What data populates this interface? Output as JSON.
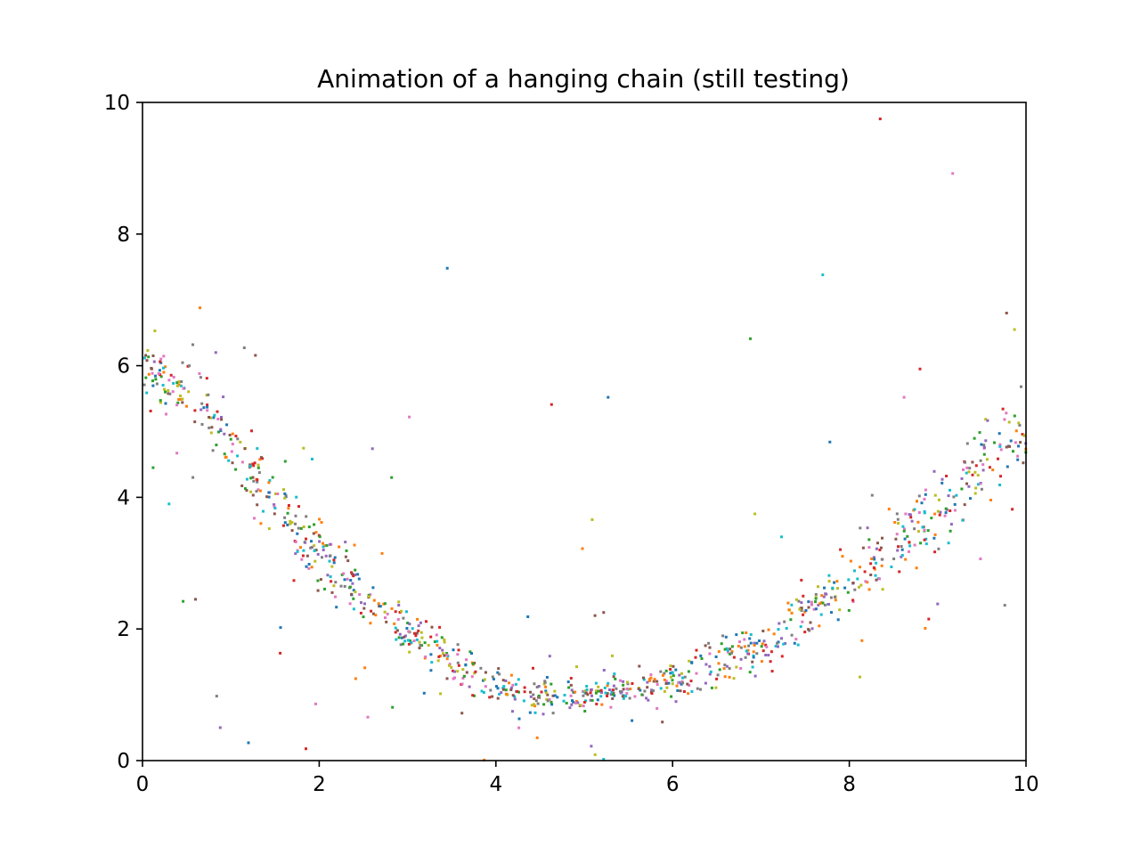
{
  "chart_data": {
    "type": "scatter",
    "title": "Animation of a hanging chain (still testing)",
    "xlabel": "",
    "ylabel": "",
    "xlim": [
      0,
      10
    ],
    "ylim": [
      0,
      10
    ],
    "xticks": [
      "0",
      "2",
      "4",
      "6",
      "8",
      "10"
    ],
    "yticks": [
      "0",
      "2",
      "4",
      "6",
      "8",
      "10"
    ],
    "grid": false,
    "legend": "none",
    "marker": "small square",
    "colors": [
      "#1f77b4",
      "#ff7f0e",
      "#2ca02c",
      "#d62728",
      "#9467bd",
      "#8c564b",
      "#e377c2",
      "#7f7f7f",
      "#bcbd22",
      "#17becf"
    ],
    "trend_curve": {
      "description": "points scattered around a sagging catenary-like curve",
      "x": [
        0.0,
        0.5,
        1.0,
        1.5,
        2.0,
        2.5,
        3.0,
        3.5,
        4.0,
        4.5,
        5.0,
        5.5,
        6.0,
        6.5,
        7.0,
        7.5,
        8.0,
        8.5,
        9.0,
        9.5,
        10.0
      ],
      "y": [
        6.0,
        5.6,
        4.8,
        3.9,
        3.1,
        2.5,
        2.0,
        1.5,
        1.15,
        1.0,
        1.0,
        1.05,
        1.2,
        1.45,
        1.75,
        2.2,
        2.65,
        3.2,
        3.8,
        4.5,
        5.1
      ]
    },
    "point_count": 1100,
    "outliers": [
      {
        "x": 3.45,
        "y": 7.48
      },
      {
        "x": 8.35,
        "y": 9.75
      },
      {
        "x": 9.17,
        "y": 8.92
      },
      {
        "x": 7.7,
        "y": 7.38
      },
      {
        "x": 6.88,
        "y": 6.41
      },
      {
        "x": 9.78,
        "y": 6.8
      },
      {
        "x": 9.87,
        "y": 6.55
      },
      {
        "x": 0.65,
        "y": 6.88
      },
      {
        "x": 0.83,
        "y": 6.2
      },
      {
        "x": 0.57,
        "y": 6.32
      },
      {
        "x": 5.27,
        "y": 5.52
      },
      {
        "x": 4.63,
        "y": 5.41
      },
      {
        "x": 3.02,
        "y": 5.22
      },
      {
        "x": 1.92,
        "y": 4.58
      },
      {
        "x": 2.82,
        "y": 4.3
      },
      {
        "x": 0.05,
        "y": 6.08
      },
      {
        "x": 5.09,
        "y": 3.66
      },
      {
        "x": 4.98,
        "y": 3.22
      },
      {
        "x": 0.88,
        "y": 0.5
      },
      {
        "x": 0.84,
        "y": 0.98
      },
      {
        "x": 1.2,
        "y": 0.27
      },
      {
        "x": 1.85,
        "y": 0.18
      },
      {
        "x": 2.55,
        "y": 0.66
      },
      {
        "x": 5.22,
        "y": 0.02
      },
      {
        "x": 0.46,
        "y": 2.42
      },
      {
        "x": 0.6,
        "y": 2.45
      },
      {
        "x": 8.12,
        "y": 1.27
      },
      {
        "x": 8.86,
        "y": 2.01
      },
      {
        "x": 9.0,
        "y": 2.38
      },
      {
        "x": 9.76,
        "y": 2.36
      },
      {
        "x": 7.78,
        "y": 4.84
      },
      {
        "x": 8.8,
        "y": 5.95
      },
      {
        "x": 8.62,
        "y": 5.52
      },
      {
        "x": 0.3,
        "y": 3.9
      },
      {
        "x": 0.12,
        "y": 4.45
      },
      {
        "x": 5.22,
        "y": 2.25
      }
    ]
  }
}
